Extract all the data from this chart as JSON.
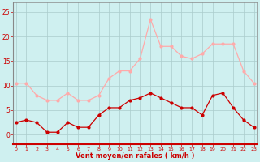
{
  "hours": [
    0,
    1,
    2,
    3,
    4,
    5,
    6,
    7,
    8,
    9,
    10,
    11,
    12,
    13,
    14,
    15,
    16,
    17,
    18,
    19,
    20,
    21,
    22,
    23
  ],
  "wind_avg": [
    2.5,
    3.0,
    2.5,
    0.5,
    0.5,
    2.5,
    1.5,
    1.5,
    4.0,
    5.5,
    5.5,
    7.0,
    7.5,
    8.5,
    7.5,
    6.5,
    5.5,
    5.5,
    4.0,
    8.0,
    8.5,
    5.5,
    3.0,
    1.5
  ],
  "wind_gust": [
    10.5,
    10.5,
    8.0,
    7.0,
    7.0,
    8.5,
    7.0,
    7.0,
    8.0,
    11.5,
    13.0,
    13.0,
    15.5,
    23.5,
    18.0,
    18.0,
    16.0,
    15.5,
    16.5,
    18.5,
    18.5,
    18.5,
    13.0,
    10.5
  ],
  "avg_color": "#cc0000",
  "gust_color": "#ffaaaa",
  "bg_color": "#cff0f0",
  "grid_color": "#aacccc",
  "xlabel": "Vent moyen/en rafales ( km/h )",
  "ylim": [
    -2,
    27
  ],
  "xlim": [
    -0.3,
    23.3
  ],
  "yticks": [
    0,
    5,
    10,
    15,
    20,
    25
  ],
  "xticks": [
    0,
    1,
    2,
    3,
    4,
    5,
    6,
    7,
    8,
    9,
    10,
    11,
    12,
    13,
    14,
    15,
    16,
    17,
    18,
    19,
    20,
    21,
    22,
    23
  ]
}
